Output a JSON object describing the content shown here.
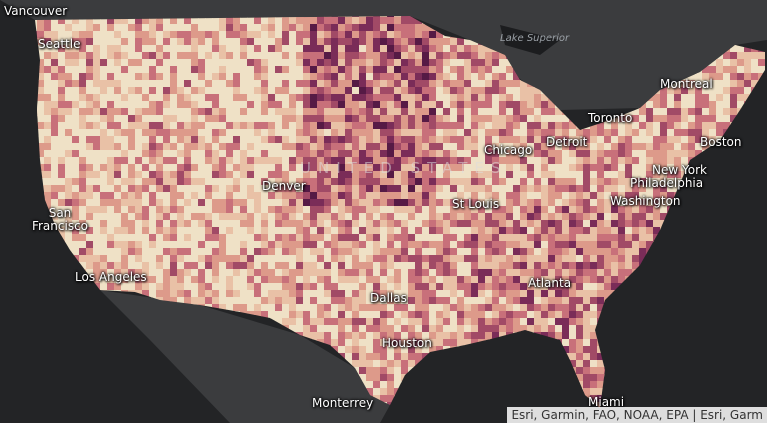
{
  "labels": [
    "Vancouver",
    "Seattle",
    "Lake Superior",
    "Montreal",
    "Toronto",
    "Detroit",
    "Boston",
    "Chicago",
    "New York",
    "Philadelphia",
    "Washington",
    "Denver",
    "UNITED STATES",
    "San Francisco",
    "St Louis",
    "Los Angeles",
    "Dallas",
    "Atlanta",
    "Houston",
    "Monterrey",
    "Miami"
  ],
  "attribution": "Esri, Garmin, FAO, NOAA, EPA | Esri, Garm"
}
